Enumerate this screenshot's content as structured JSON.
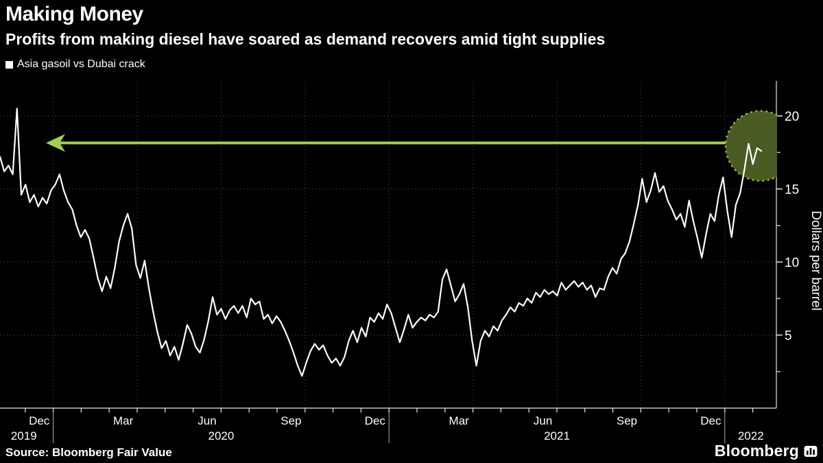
{
  "header": {
    "title": "Making Money",
    "subtitle": "Profits from making diesel have soared as demand recovers amid tight supplies"
  },
  "legend": {
    "label": "Asia gasoil vs Dubai crack",
    "marker_color": "#ffffff"
  },
  "footer": {
    "source": "Source: Bloomberg Fair Value",
    "brand": "Bloomberg"
  },
  "colors": {
    "background": "#000000",
    "line": "#ffffff",
    "grid_h": "#5a5a5a",
    "grid_v": "#4d4d4d",
    "axis": "#e6e6e6",
    "text": "#ffffff",
    "annotation_green": "#a3d14e",
    "circle_fill": "#4a5c23",
    "circle_dots": "#9fc63d"
  },
  "chart_data": {
    "type": "line",
    "title": "Making Money",
    "subtitle": "Profits from making diesel have soared as demand recovers amid tight supplies",
    "series_name": "Asia gasoil vs Dubai crack",
    "unit": "USD per barrel",
    "ylabel": "Dollars per barrel",
    "y_ticks": [
      5,
      10,
      15,
      20
    ],
    "y_minor_ticks": [
      2.5,
      7.5,
      12.5,
      17.5
    ],
    "ylim": [
      0,
      22.3
    ],
    "x_epoch": "months since 2019-11-01",
    "x_start_m": 0.098,
    "x_step_m": 0.152,
    "x_month_tick_first": 1,
    "x_month_tick_last": 27,
    "x_quarter_gridline_months": [
      2,
      5,
      8,
      11,
      14,
      17,
      20,
      23,
      26
    ],
    "x_year_divider_months": [
      2,
      14,
      26
    ],
    "x_month_labels": [
      {
        "m": 1.5,
        "label": "Dec"
      },
      {
        "m": 4.5,
        "label": "Mar"
      },
      {
        "m": 7.5,
        "label": "Jun"
      },
      {
        "m": 10.5,
        "label": "Sep"
      },
      {
        "m": 13.5,
        "label": "Dec"
      },
      {
        "m": 16.5,
        "label": "Mar"
      },
      {
        "m": 19.5,
        "label": "Jun"
      },
      {
        "m": 22.5,
        "label": "Sep"
      },
      {
        "m": 25.5,
        "label": "Dec"
      }
    ],
    "x_year_labels": [
      {
        "m": 0.95,
        "label": "2019"
      },
      {
        "m": 8.0,
        "label": "2020"
      },
      {
        "m": 20.0,
        "label": "2021"
      },
      {
        "m": 26.93,
        "label": "2022"
      }
    ],
    "values": [
      17.2,
      16.2,
      16.6,
      16.0,
      20.5,
      14.6,
      15.3,
      14.1,
      14.6,
      13.8,
      14.4,
      14.0,
      14.9,
      15.3,
      16.0,
      14.9,
      14.1,
      13.6,
      12.5,
      11.7,
      12.2,
      11.6,
      10.3,
      8.9,
      8.0,
      9.0,
      8.2,
      9.6,
      11.4,
      12.5,
      13.3,
      12.3,
      9.8,
      8.9,
      10.1,
      8.2,
      6.6,
      5.2,
      4.1,
      4.6,
      3.6,
      4.2,
      3.3,
      4.4,
      5.7,
      5.1,
      4.2,
      3.8,
      4.7,
      6.0,
      7.6,
      6.4,
      6.8,
      6.1,
      6.7,
      7.0,
      6.5,
      7.0,
      6.2,
      7.5,
      7.1,
      7.3,
      6.1,
      6.4,
      5.8,
      6.3,
      5.9,
      5.3,
      4.6,
      3.8,
      2.9,
      2.2,
      3.1,
      3.9,
      4.4,
      4.0,
      4.3,
      3.6,
      3.1,
      3.4,
      2.9,
      3.5,
      4.6,
      5.3,
      4.5,
      5.5,
      4.9,
      6.2,
      5.9,
      6.5,
      6.1,
      7.1,
      6.5,
      5.5,
      4.5,
      5.4,
      6.4,
      5.5,
      5.9,
      6.2,
      6.0,
      6.4,
      6.2,
      6.6,
      8.8,
      9.5,
      8.4,
      7.3,
      7.8,
      8.5,
      6.9,
      4.6,
      2.9,
      4.6,
      5.3,
      4.9,
      5.6,
      5.3,
      6.0,
      6.4,
      6.9,
      6.6,
      7.2,
      7.0,
      7.5,
      7.2,
      7.9,
      7.6,
      8.1,
      7.8,
      8.0,
      7.7,
      8.6,
      8.1,
      8.4,
      8.7,
      8.3,
      8.6,
      8.1,
      8.4,
      7.6,
      8.2,
      8.1,
      9.0,
      9.6,
      9.2,
      10.2,
      10.6,
      11.4,
      12.6,
      13.9,
      15.7,
      14.1,
      14.9,
      16.1,
      14.8,
      15.2,
      14.2,
      13.6,
      12.9,
      13.3,
      12.4,
      14.2,
      12.8,
      11.6,
      10.3,
      11.9,
      13.3,
      12.8,
      14.6,
      15.8,
      13.5,
      11.7,
      13.9,
      14.7,
      16.3,
      18.1,
      16.7,
      17.8,
      17.6
    ],
    "annotations": {
      "arrow": {
        "value": 18.15,
        "head_m": 1.74,
        "tail_m": 26.03
      },
      "highlight_circle": {
        "center_m": 27.28,
        "center_value": 17.95,
        "radius_px": 51
      }
    }
  }
}
